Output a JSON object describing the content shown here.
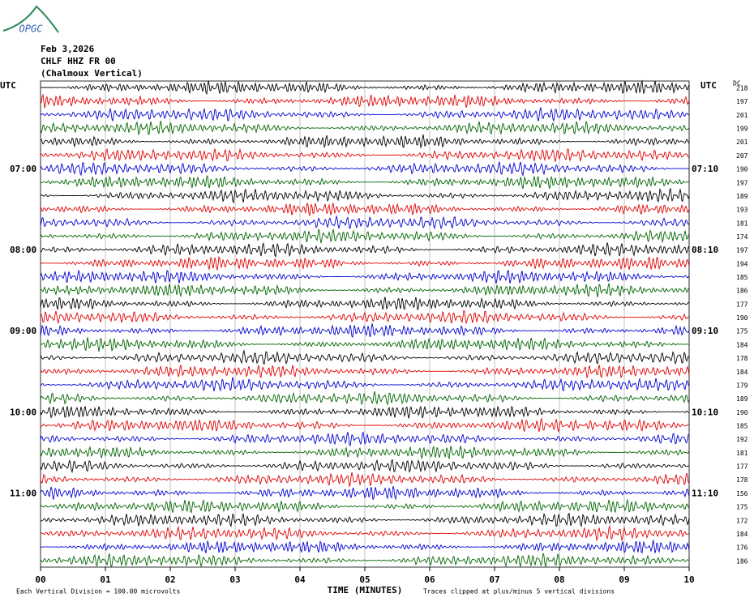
{
  "chart_data": {
    "type": "helicorder",
    "logo": "OPGC",
    "date": "Feb 3,2026",
    "station": "CHLF HHZ FR 00",
    "station_name": "(Chalmoux Vertical)",
    "time_zone": "UTC",
    "dc_label": "DC",
    "xlabel": "TIME (MINUTES)",
    "xlim": [
      0,
      10
    ],
    "xticks": [
      {
        "value": 0,
        "label": "00"
      },
      {
        "value": 1,
        "label": "01"
      },
      {
        "value": 2,
        "label": "02"
      },
      {
        "value": 3,
        "label": "03"
      },
      {
        "value": 4,
        "label": "04"
      },
      {
        "value": 5,
        "label": "05"
      },
      {
        "value": 6,
        "label": "06"
      },
      {
        "value": 7,
        "label": "07"
      },
      {
        "value": 8,
        "label": "08"
      },
      {
        "value": 9,
        "label": "09"
      },
      {
        "value": 10,
        "label": "10"
      }
    ],
    "grid": true,
    "colors": [
      "#000000",
      "#e00000",
      "#0000d0",
      "#006400"
    ],
    "left_labels": [
      null,
      null,
      null,
      null,
      null,
      null,
      "07:00",
      null,
      null,
      null,
      null,
      null,
      "08:00",
      null,
      null,
      null,
      null,
      null,
      "09:00",
      null,
      null,
      null,
      null,
      null,
      "10:00",
      null,
      null,
      null,
      null,
      null,
      "11:00",
      null,
      null,
      null,
      null,
      null
    ],
    "right_labels": [
      null,
      null,
      null,
      null,
      null,
      null,
      "07:10",
      null,
      null,
      null,
      null,
      null,
      "08:10",
      null,
      null,
      null,
      null,
      null,
      "09:10",
      null,
      null,
      null,
      null,
      null,
      "10:10",
      null,
      null,
      null,
      null,
      null,
      "11:10",
      null,
      null,
      null,
      null,
      null
    ],
    "dc_values": [
      218,
      197,
      201,
      199,
      201,
      207,
      190,
      197,
      189,
      193,
      181,
      174,
      197,
      194,
      185,
      186,
      177,
      190,
      175,
      184,
      178,
      184,
      179,
      189,
      190,
      185,
      192,
      181,
      177,
      178,
      156,
      175,
      172,
      184,
      176,
      186
    ],
    "scale_note": "Each Vertical Division =  100.00 microvolts",
    "clip_note": "Traces clipped at plus/minus 5 vertical divisions"
  }
}
